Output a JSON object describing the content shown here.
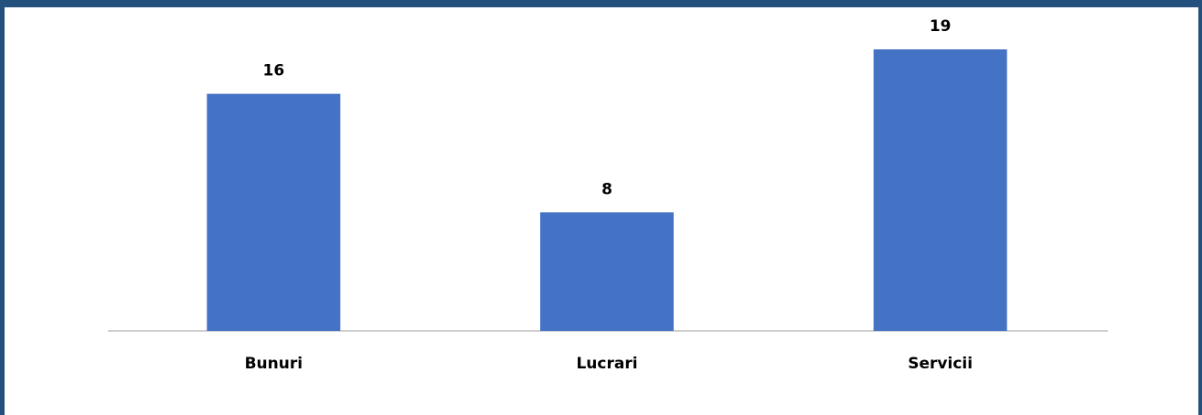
{
  "chart_data": {
    "type": "bar",
    "categories": [
      "Bunuri",
      "Lucrari",
      "Servicii"
    ],
    "values": [
      16,
      8,
      19
    ],
    "color": "#4472c4"
  }
}
